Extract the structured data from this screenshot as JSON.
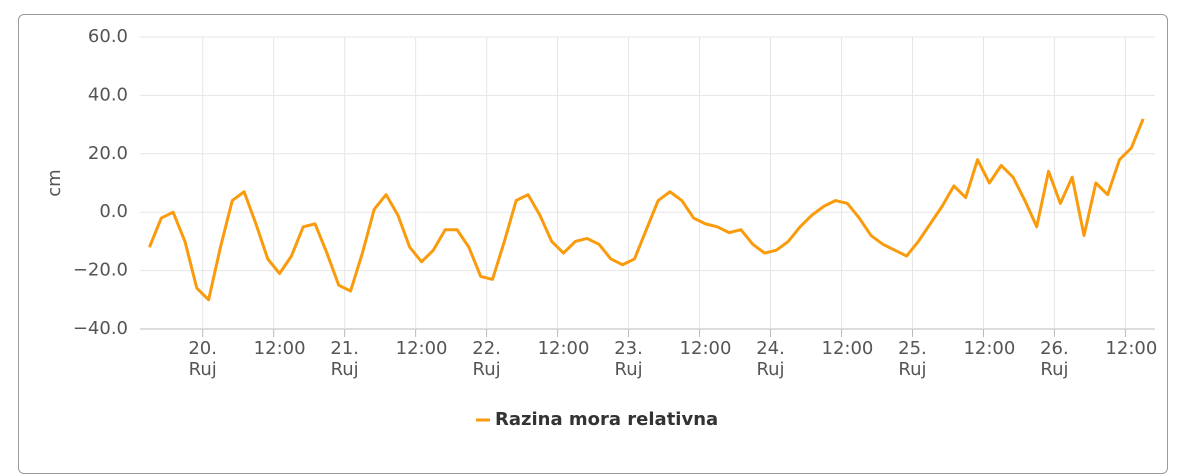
{
  "chart_data": {
    "type": "line",
    "y_label": "cm",
    "x": [
      -9,
      -7,
      -5,
      -3,
      -1,
      1,
      3,
      5,
      7,
      9,
      11,
      13,
      15,
      17,
      19,
      21,
      23,
      25,
      27,
      29,
      31,
      33,
      35,
      37,
      39,
      41,
      43,
      45,
      47,
      49,
      51,
      53,
      55,
      57,
      59,
      61,
      63,
      65,
      67,
      69,
      71,
      73,
      75,
      77,
      79,
      81,
      83,
      85,
      87,
      89,
      91,
      93,
      95,
      97,
      99,
      101,
      103,
      105,
      107,
      109,
      111,
      113,
      115,
      117,
      119,
      121,
      123,
      125,
      127,
      129,
      131,
      133,
      135,
      137,
      139,
      141,
      143,
      145,
      147,
      149,
      151,
      153,
      155,
      157,
      159
    ],
    "series": [
      {
        "name": "Razina mora relativna",
        "color": "#f99b0c",
        "values": [
          -12,
          -2,
          0,
          -10,
          -26,
          -30,
          -12,
          4,
          7,
          -4,
          -16,
          -21,
          -15,
          -5,
          -4,
          -14,
          -25,
          -27,
          -14,
          1,
          6,
          -1,
          -12,
          -17,
          -13,
          -6,
          -6,
          -12,
          -22,
          -23,
          -10,
          4,
          6,
          -1,
          -10,
          -14,
          -10,
          -9,
          -11,
          -16,
          -18,
          -16,
          -6,
          4,
          7,
          4,
          -2,
          -4,
          -5,
          -7,
          -6,
          -11,
          -14,
          -13,
          -10,
          -5,
          -1,
          2,
          4,
          3,
          -2,
          -8,
          -11,
          -13,
          -15,
          -10,
          -4,
          2,
          9,
          5,
          18,
          10,
          16,
          12,
          4,
          -5,
          14,
          3,
          12,
          -8,
          10,
          6,
          18,
          22,
          32
        ]
      }
    ],
    "xlim": [
      -10.6,
      161
    ],
    "xticks": [
      {
        "value": 0,
        "label": "20. Ruj"
      },
      {
        "value": 12,
        "label": "12:00"
      },
      {
        "value": 24,
        "label": "21. Ruj"
      },
      {
        "value": 36,
        "label": "12:00"
      },
      {
        "value": 48,
        "label": "22. Ruj"
      },
      {
        "value": 60,
        "label": "12:00"
      },
      {
        "value": 72,
        "label": "23. Ruj"
      },
      {
        "value": 84,
        "label": "12:00"
      },
      {
        "value": 96,
        "label": "24. Ruj"
      },
      {
        "value": 108,
        "label": "12:00"
      },
      {
        "value": 120,
        "label": "25. Ruj"
      },
      {
        "value": 132,
        "label": "12:00"
      },
      {
        "value": 144,
        "label": "26. Ruj"
      },
      {
        "value": 156,
        "label": "12:00"
      }
    ],
    "ylim": [
      -40,
      60
    ],
    "yticks": [
      {
        "value": -40,
        "label": "−40.0"
      },
      {
        "value": -20,
        "label": "−20.0"
      },
      {
        "value": 0,
        "label": "0.0"
      },
      {
        "value": 20,
        "label": "20.0"
      },
      {
        "value": 40,
        "label": "40.0"
      },
      {
        "value": 60,
        "label": "60.0"
      }
    ],
    "grid": true,
    "legend": "bottom"
  }
}
